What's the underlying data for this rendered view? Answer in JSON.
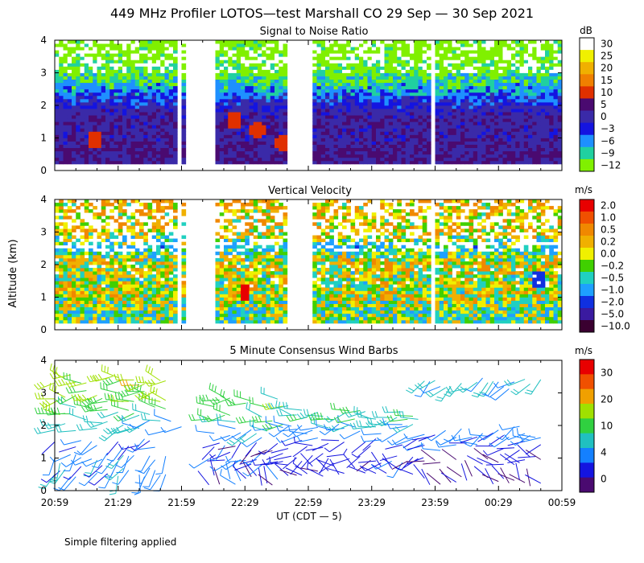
{
  "title": "449 MHz Profiler LOTOS—test Marshall CO 29 Sep — 30 Sep 2021",
  "x_axis": {
    "label": "UT  (CDT — 5)",
    "range_minutes": [
      0,
      240
    ],
    "ticks": [
      {
        "m": 0,
        "label": "20:59"
      },
      {
        "m": 30,
        "label": "21:29"
      },
      {
        "m": 60,
        "label": "21:59"
      },
      {
        "m": 90,
        "label": "22:29"
      },
      {
        "m": 120,
        "label": "22:59"
      },
      {
        "m": 150,
        "label": "23:29"
      },
      {
        "m": 180,
        "label": "23:59"
      },
      {
        "m": 210,
        "label": "00:29"
      },
      {
        "m": 240,
        "label": "00:59"
      }
    ]
  },
  "y_axis": {
    "label": "Altitude (km)",
    "range_km": [
      0,
      4
    ],
    "ticks": [
      "0",
      "1",
      "2",
      "3",
      "4"
    ]
  },
  "footnote": "Simple filtering applied",
  "chart_data": [
    {
      "type": "heatmap",
      "title": "Signal to Noise Ratio",
      "colorbar_unit": "dB",
      "colorbar_labels": [
        "30",
        "25",
        "20",
        "15",
        "10",
        "5",
        "0",
        "−3",
        "−6",
        "−9",
        "−12"
      ],
      "colorbar_colors": [
        "#ffffff",
        "#f0f000",
        "#f0b000",
        "#f08000",
        "#e03000",
        "#4a0a70",
        "#3a2aa8",
        "#1414e0",
        "#1e90ff",
        "#20d0a0",
        "#80f000"
      ],
      "xlim": [
        0,
        240
      ],
      "ylim": [
        0,
        4
      ],
      "data_segments_minutes": [
        [
          0,
          58
        ],
        [
          60,
          62
        ],
        [
          75,
          110
        ],
        [
          122,
          178
        ],
        [
          180,
          240
        ]
      ],
      "typical_profile": [
        {
          "alt_km": 0.5,
          "snr_db": 5
        },
        {
          "alt_km": 1.0,
          "snr_db": 3
        },
        {
          "alt_km": 1.5,
          "snr_db": 4
        },
        {
          "alt_km": 2.0,
          "snr_db": 0
        },
        {
          "alt_km": 2.5,
          "snr_db": -6
        },
        {
          "alt_km": 3.0,
          "snr_db": -10
        },
        {
          "alt_km": 3.5,
          "snr_db": -12
        }
      ],
      "features": [
        {
          "t_min": 18,
          "alt_km": 0.9,
          "snr_db": 12
        },
        {
          "t_min": 84,
          "alt_km": 1.5,
          "snr_db": 12
        },
        {
          "t_min": 95,
          "alt_km": 1.2,
          "snr_db": 13
        },
        {
          "t_min": 107,
          "alt_km": 0.8,
          "snr_db": 12
        }
      ]
    },
    {
      "type": "heatmap",
      "title": "Vertical Velocity",
      "colorbar_unit": "m/s",
      "colorbar_labels": [
        "2.0",
        "1.0",
        "0.5",
        "0.2",
        "0.0",
        "−0.2",
        "−0.5",
        "−1.0",
        "−2.0",
        "−5.0",
        "−10.0"
      ],
      "colorbar_colors": [
        "#e80000",
        "#f05000",
        "#f08800",
        "#f0b000",
        "#f0f000",
        "#40d000",
        "#20d0c0",
        "#1ea0ff",
        "#1030e0",
        "#3a1aa0",
        "#3a0030"
      ],
      "xlim": [
        0,
        240
      ],
      "ylim": [
        0,
        4
      ],
      "data_segments_minutes": [
        [
          0,
          58
        ],
        [
          60,
          62
        ],
        [
          75,
          110
        ],
        [
          122,
          178
        ],
        [
          180,
          240
        ]
      ],
      "typical_profile": [
        {
          "alt_km": 0.5,
          "w_ms": -0.2
        },
        {
          "alt_km": 1.0,
          "w_ms": 0.1
        },
        {
          "alt_km": 1.5,
          "w_ms": 0.0
        },
        {
          "alt_km": 2.0,
          "w_ms": 0.2
        },
        {
          "alt_km": 2.5,
          "w_ms": -0.5
        },
        {
          "alt_km": 3.0,
          "w_ms": 0.3
        }
      ],
      "features": [
        {
          "t_min": 89,
          "alt_km": 1.1,
          "w_ms": 2.0
        },
        {
          "t_min": 228,
          "alt_km": 1.5,
          "w_ms": -2.0
        }
      ]
    },
    {
      "type": "scatter",
      "title": "5 Minute Consensus Wind Barbs",
      "colorbar_unit": "m/s",
      "colorbar_labels": [
        "30",
        "20",
        "10",
        "4",
        "0"
      ],
      "colorbar_colors": [
        "#e80000",
        "#f05000",
        "#f0a000",
        "#a0e000",
        "#30d040",
        "#20c0c0",
        "#1480ff",
        "#1414e0",
        "#4a0a70"
      ],
      "xlim": [
        0,
        240
      ],
      "ylim": [
        0,
        4
      ],
      "segments": [
        {
          "t_start": 0,
          "t_end": 55,
          "levels": [
            {
              "alt_km": 0.6,
              "speed_ms": 8,
              "dir_deg": 200
            },
            {
              "alt_km": 1.0,
              "speed_ms": 10,
              "dir_deg": 220
            },
            {
              "alt_km": 1.5,
              "speed_ms": 6,
              "dir_deg": 240
            },
            {
              "alt_km": 2.0,
              "speed_ms": 12,
              "dir_deg": 260
            },
            {
              "alt_km": 2.4,
              "speed_ms": 16,
              "dir_deg": 270
            },
            {
              "alt_km": 2.9,
              "speed_ms": 19,
              "dir_deg": 270
            },
            {
              "alt_km": 3.4,
              "speed_ms": 20,
              "dir_deg": 275
            }
          ]
        },
        {
          "t_start": 55,
          "t_end": 65,
          "levels": [
            {
              "alt_km": 2.0,
              "speed_ms": 11,
              "dir_deg": 265
            }
          ]
        },
        {
          "t_start": 73,
          "t_end": 112,
          "levels": [
            {
              "alt_km": 0.3,
              "speed_ms": 4,
              "dir_deg": 330
            },
            {
              "alt_km": 0.8,
              "speed_ms": 5,
              "dir_deg": 250
            },
            {
              "alt_km": 1.3,
              "speed_ms": 4,
              "dir_deg": 230
            },
            {
              "alt_km": 1.8,
              "speed_ms": 9,
              "dir_deg": 260
            },
            {
              "alt_km": 2.2,
              "speed_ms": 14,
              "dir_deg": 270
            },
            {
              "alt_km": 2.7,
              "speed_ms": 16,
              "dir_deg": 275
            }
          ]
        },
        {
          "t_start": 112,
          "t_end": 175,
          "levels": [
            {
              "alt_km": 0.6,
              "speed_ms": 3,
              "dir_deg": 300
            },
            {
              "alt_km": 1.0,
              "speed_ms": 4,
              "dir_deg": 240
            },
            {
              "alt_km": 1.5,
              "speed_ms": 5,
              "dir_deg": 250
            },
            {
              "alt_km": 1.9,
              "speed_ms": 9,
              "dir_deg": 260
            },
            {
              "alt_km": 2.3,
              "speed_ms": 13,
              "dir_deg": 270
            }
          ]
        },
        {
          "t_start": 175,
          "t_end": 232,
          "levels": [
            {
              "alt_km": 0.3,
              "speed_ms": 2,
              "dir_deg": 320
            },
            {
              "alt_km": 0.9,
              "speed_ms": 3,
              "dir_deg": 290
            },
            {
              "alt_km": 1.4,
              "speed_ms": 5,
              "dir_deg": 260
            },
            {
              "alt_km": 1.8,
              "speed_ms": 7,
              "dir_deg": 250
            },
            {
              "alt_km": 3.3,
              "speed_ms": 10,
              "dir_deg": 240
            }
          ]
        }
      ]
    }
  ]
}
